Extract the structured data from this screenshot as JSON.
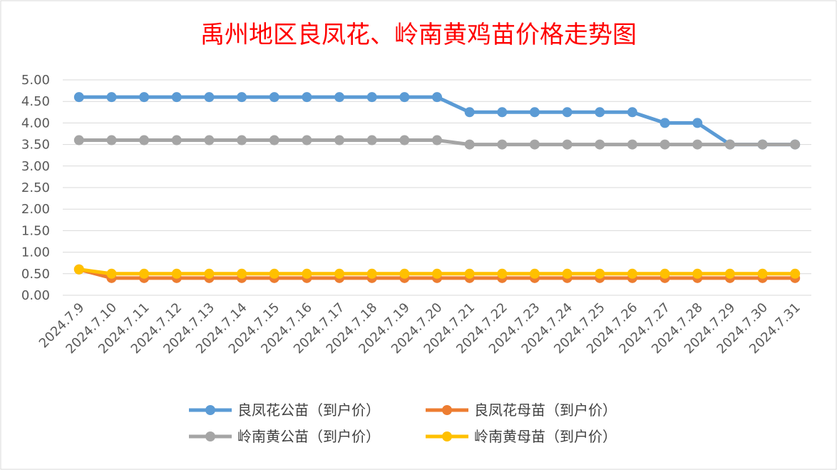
{
  "chart_data": {
    "type": "line",
    "title": "禹州地区良凤花、岭南黄鸡苗价格走势图",
    "xlabel": "",
    "ylabel": "",
    "categories": [
      "2024.7.9",
      "2024.7.10",
      "2024.7.11",
      "2024.7.12",
      "2024.7.13",
      "2024.7.14",
      "2024.7.15",
      "2024.7.16",
      "2024.7.17",
      "2024.7.18",
      "2024.7.19",
      "2024.7.20",
      "2024.7.21",
      "2024.7.22",
      "2024.7.23",
      "2024.7.24",
      "2024.7.25",
      "2024.7.26",
      "2024.7.27",
      "2024.7.28",
      "2024.7.29",
      "2024.7.30",
      "2024.7.31"
    ],
    "ylim": [
      0,
      5
    ],
    "yticks": [
      "0.00",
      "0.50",
      "1.00",
      "1.50",
      "2.00",
      "2.50",
      "3.00",
      "3.50",
      "4.00",
      "4.50",
      "5.00"
    ],
    "grid": true,
    "legend_position": "bottom",
    "series": [
      {
        "name": "良凤花公苗（到户价）",
        "color": "#5b9bd5",
        "values": [
          4.6,
          4.6,
          4.6,
          4.6,
          4.6,
          4.6,
          4.6,
          4.6,
          4.6,
          4.6,
          4.6,
          4.6,
          4.25,
          4.25,
          4.25,
          4.25,
          4.25,
          4.25,
          4.0,
          4.0,
          3.5,
          3.5,
          3.5
        ]
      },
      {
        "name": "良凤花母苗（到户价）",
        "color": "#ed7d31",
        "values": [
          0.6,
          0.4,
          0.4,
          0.4,
          0.4,
          0.4,
          0.4,
          0.4,
          0.4,
          0.4,
          0.4,
          0.4,
          0.4,
          0.4,
          0.4,
          0.4,
          0.4,
          0.4,
          0.4,
          0.4,
          0.4,
          0.4,
          0.4
        ]
      },
      {
        "name": "岭南黄公苗（到户价）",
        "color": "#a5a5a5",
        "values": [
          3.6,
          3.6,
          3.6,
          3.6,
          3.6,
          3.6,
          3.6,
          3.6,
          3.6,
          3.6,
          3.6,
          3.6,
          3.5,
          3.5,
          3.5,
          3.5,
          3.5,
          3.5,
          3.5,
          3.5,
          3.5,
          3.5,
          3.5
        ]
      },
      {
        "name": "岭南黄母苗（到户价）",
        "color": "#ffc000",
        "values": [
          0.6,
          0.5,
          0.5,
          0.5,
          0.5,
          0.5,
          0.5,
          0.5,
          0.5,
          0.5,
          0.5,
          0.5,
          0.5,
          0.5,
          0.5,
          0.5,
          0.5,
          0.5,
          0.5,
          0.5,
          0.5,
          0.5,
          0.5
        ]
      }
    ]
  }
}
